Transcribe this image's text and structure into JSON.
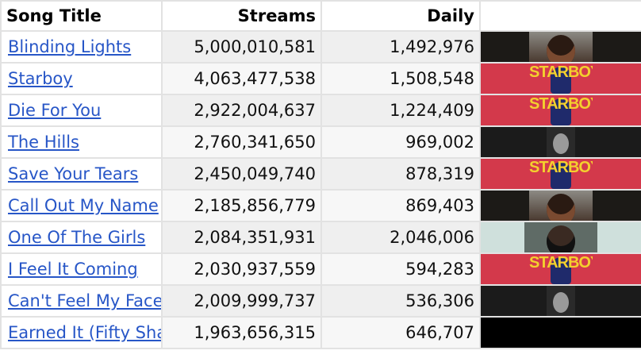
{
  "table": {
    "headers": {
      "title": "Song Title",
      "streams": "Streams",
      "daily": "Daily",
      "art": ""
    },
    "rows": [
      {
        "title": "Blinding Lights",
        "streams": "5,000,010,581",
        "daily": "1,492,976",
        "album": "after-hours"
      },
      {
        "title": "Starboy",
        "streams": "4,063,477,538",
        "daily": "1,508,548",
        "album": "starboy"
      },
      {
        "title": "Die For You",
        "streams": "2,922,004,637",
        "daily": "1,224,409",
        "album": "starboy"
      },
      {
        "title": "The Hills",
        "streams": "2,760,341,650",
        "daily": "969,002",
        "album": "beauty-behind-the-madness"
      },
      {
        "title": "Save Your Tears",
        "streams": "2,450,049,740",
        "daily": "878,319",
        "album": "starboy"
      },
      {
        "title": "Call Out My Name",
        "streams": "2,185,856,779",
        "daily": "869,403",
        "album": "after-hours"
      },
      {
        "title": "One Of The Girls",
        "streams": "2,084,351,931",
        "daily": "2,046,006",
        "album": "dawn-fm"
      },
      {
        "title": "I Feel It Coming",
        "streams": "2,030,937,559",
        "daily": "594,283",
        "album": "starboy"
      },
      {
        "title": "Can't Feel My Face",
        "streams": "2,009,999,737",
        "daily": "536,306",
        "album": "beauty-behind-the-madness"
      },
      {
        "title": "Earned It (Fifty Shades of Grey)",
        "streams": "1,963,656,315",
        "daily": "646,707",
        "album": "black"
      }
    ]
  },
  "album_text": {
    "starboy": "STARBOY"
  },
  "colors": {
    "link": "#2756c7",
    "starboy_bg": "#d3394b",
    "starboy_text": "#f3d02e",
    "after_hours_bg": "#1c1a17",
    "beauty_bg": "#1b1b1b",
    "dawn_bg": "#cfe0dc",
    "black_bg": "#000000"
  }
}
